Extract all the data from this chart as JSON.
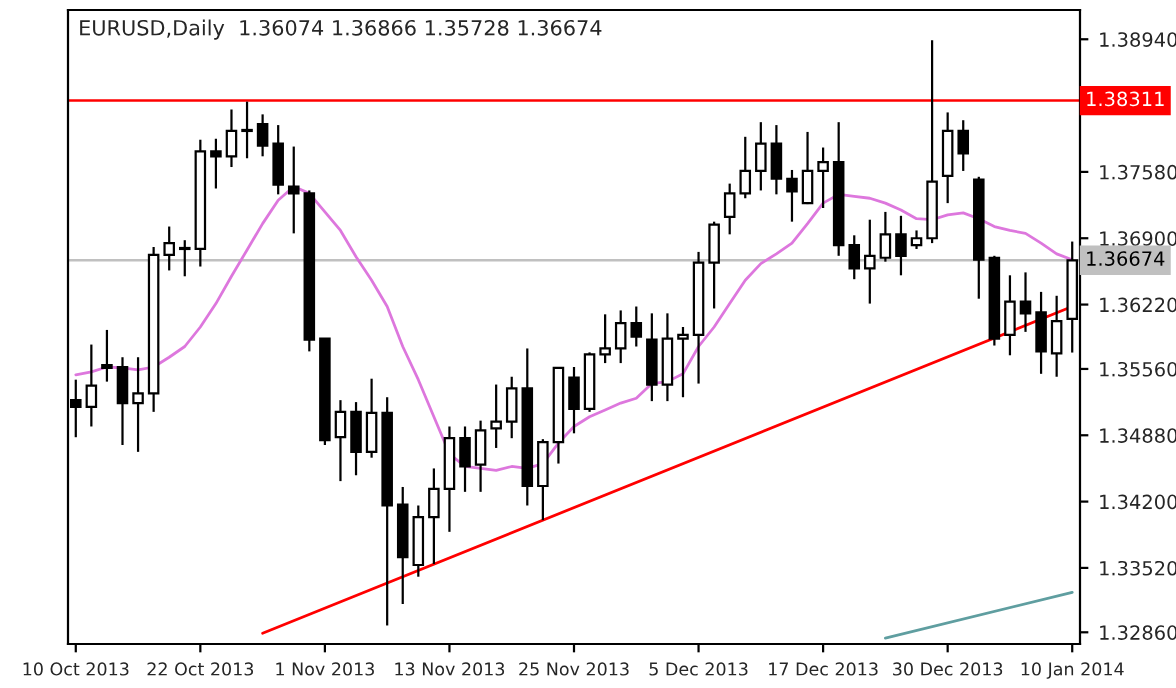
{
  "chart_data": {
    "type": "candlestick",
    "title": "EURUSD,Daily  1.36074 1.36866 1.35728 1.36674",
    "categories": [
      "10 Oct 2013",
      null,
      null,
      null,
      null,
      null,
      null,
      null,
      "22 Oct 2013",
      null,
      null,
      null,
      null,
      null,
      null,
      null,
      "1 Nov 2013",
      null,
      null,
      null,
      null,
      null,
      null,
      null,
      "13 Nov 2013",
      null,
      null,
      null,
      null,
      null,
      null,
      null,
      "25 Nov 2013",
      null,
      null,
      null,
      null,
      null,
      null,
      null,
      "5 Dec 2013",
      null,
      null,
      null,
      null,
      null,
      null,
      null,
      "17 Dec 2013",
      null,
      null,
      null,
      null,
      null,
      null,
      null,
      "30 Dec 2013",
      null,
      null,
      null,
      null,
      null,
      null,
      null,
      "10 Jan 2014"
    ],
    "ohlc": [
      [
        1.3524,
        1.3545,
        1.3486,
        1.3517
      ],
      [
        1.3517,
        1.3581,
        1.3497,
        1.3539
      ],
      [
        1.356,
        1.3596,
        1.3543,
        1.3557
      ],
      [
        1.3558,
        1.3568,
        1.3478,
        1.3521
      ],
      [
        1.3521,
        1.3568,
        1.3471,
        1.3531
      ],
      [
        1.3531,
        1.3681,
        1.3512,
        1.3673
      ],
      [
        1.3673,
        1.3702,
        1.3657,
        1.3685
      ],
      [
        1.368,
        1.3688,
        1.3651,
        1.3679
      ],
      [
        1.3679,
        1.3791,
        1.3661,
        1.3779
      ],
      [
        1.3779,
        1.3792,
        1.3741,
        1.3774
      ],
      [
        1.3774,
        1.3822,
        1.3763,
        1.38
      ],
      [
        1.3801,
        1.383,
        1.3772,
        1.38
      ],
      [
        1.3807,
        1.3817,
        1.3774,
        1.3785
      ],
      [
        1.3787,
        1.3806,
        1.3735,
        1.3745
      ],
      [
        1.3743,
        1.3784,
        1.3695,
        1.3736
      ],
      [
        1.3736,
        1.3739,
        1.3574,
        1.3586
      ],
      [
        1.3587,
        1.3587,
        1.3478,
        1.3483
      ],
      [
        1.3486,
        1.3524,
        1.3441,
        1.3512
      ],
      [
        1.3512,
        1.3522,
        1.3447,
        1.3471
      ],
      [
        1.3471,
        1.3546,
        1.3465,
        1.3511
      ],
      [
        1.3511,
        1.3527,
        1.3293,
        1.3416
      ],
      [
        1.3417,
        1.3435,
        1.3315,
        1.3363
      ],
      [
        1.3355,
        1.3416,
        1.3343,
        1.3404
      ],
      [
        1.3404,
        1.3454,
        1.3356,
        1.3433
      ],
      [
        1.3433,
        1.3497,
        1.3389,
        1.3485
      ],
      [
        1.3485,
        1.3497,
        1.343,
        1.3456
      ],
      [
        1.3458,
        1.3503,
        1.343,
        1.3493
      ],
      [
        1.3495,
        1.354,
        1.3475,
        1.3502
      ],
      [
        1.3502,
        1.3548,
        1.3485,
        1.3536
      ],
      [
        1.3536,
        1.3577,
        1.3416,
        1.3436
      ],
      [
        1.3436,
        1.3484,
        1.3401,
        1.3481
      ],
      [
        1.3481,
        1.3558,
        1.3459,
        1.3557
      ],
      [
        1.3547,
        1.3558,
        1.349,
        1.3515
      ],
      [
        1.3515,
        1.3573,
        1.3512,
        1.3571
      ],
      [
        1.3571,
        1.3612,
        1.3562,
        1.3577
      ],
      [
        1.3577,
        1.3616,
        1.3562,
        1.3603
      ],
      [
        1.3603,
        1.362,
        1.3579,
        1.3589
      ],
      [
        1.3586,
        1.3613,
        1.3523,
        1.354
      ],
      [
        1.354,
        1.3613,
        1.3523,
        1.3587
      ],
      [
        1.3587,
        1.3599,
        1.3527,
        1.3591
      ],
      [
        1.3591,
        1.3676,
        1.3541,
        1.3665
      ],
      [
        1.3665,
        1.3707,
        1.3618,
        1.3704
      ],
      [
        1.3712,
        1.3746,
        1.3694,
        1.3736
      ],
      [
        1.3736,
        1.3794,
        1.3731,
        1.3759
      ],
      [
        1.3759,
        1.3809,
        1.3739,
        1.3787
      ],
      [
        1.3787,
        1.3806,
        1.3735,
        1.3751
      ],
      [
        1.3751,
        1.376,
        1.3707,
        1.3738
      ],
      [
        1.3726,
        1.3799,
        1.3725,
        1.3759
      ],
      [
        1.3759,
        1.3783,
        1.3721,
        1.3768
      ],
      [
        1.3768,
        1.3809,
        1.3672,
        1.3683
      ],
      [
        1.3683,
        1.3693,
        1.3648,
        1.3659
      ],
      [
        1.3659,
        1.3709,
        1.3623,
        1.3672
      ],
      [
        1.367,
        1.3717,
        1.3666,
        1.3694
      ],
      [
        1.3694,
        1.3713,
        1.3652,
        1.3672
      ],
      [
        1.3683,
        1.3698,
        1.3679,
        1.369
      ],
      [
        1.369,
        1.3893,
        1.3685,
        1.3748
      ],
      [
        1.3754,
        1.3819,
        1.3726,
        1.38
      ],
      [
        1.38,
        1.3811,
        1.3759,
        1.3777
      ],
      [
        1.375,
        1.3753,
        1.3628,
        1.3668
      ],
      [
        1.367,
        1.3672,
        1.358,
        1.3587
      ],
      [
        1.3591,
        1.3652,
        1.357,
        1.3625
      ],
      [
        1.3625,
        1.3655,
        1.3594,
        1.3613
      ],
      [
        1.3614,
        1.3635,
        1.3551,
        1.3574
      ],
      [
        1.3572,
        1.3631,
        1.3548,
        1.3605
      ],
      [
        1.36074,
        1.36866,
        1.35728,
        1.36674
      ]
    ],
    "series": [
      {
        "type": "line",
        "color": "#dd77dd",
        "values": [
          1.355,
          1.3553,
          1.3558,
          1.3557,
          1.3555,
          1.3558,
          1.3568,
          1.3579,
          1.3599,
          1.3623,
          1.3651,
          1.3678,
          1.3705,
          1.3729,
          1.3743,
          1.3736,
          1.3717,
          1.3698,
          1.3671,
          1.3647,
          1.362,
          1.3579,
          1.3545,
          1.3507,
          1.3469,
          1.3456,
          1.3454,
          1.3452,
          1.3456,
          1.3454,
          1.3459,
          1.348,
          1.3497,
          1.3507,
          1.3514,
          1.3521,
          1.3526,
          1.3541,
          1.3543,
          1.3551,
          1.3579,
          1.3599,
          1.3623,
          1.3647,
          1.3664,
          1.3674,
          1.3685,
          1.3705,
          1.3726,
          1.3735,
          1.3733,
          1.3731,
          1.3726,
          1.3719,
          1.371,
          1.3709,
          1.3714,
          1.3716,
          1.371,
          1.3702,
          1.3698,
          1.3695,
          1.3685,
          1.3674,
          1.3668
        ]
      },
      {
        "type": "line",
        "color": "#ff0000",
        "values": [
          null,
          null,
          null,
          null,
          null,
          null,
          null,
          null,
          null,
          null,
          null,
          null,
          1.3285,
          null,
          null,
          null,
          null,
          null,
          null,
          null,
          null,
          null,
          null,
          null,
          null,
          null,
          null,
          null,
          null,
          null,
          null,
          null,
          null,
          null,
          null,
          null,
          null,
          null,
          null,
          null,
          null,
          null,
          null,
          null,
          null,
          null,
          null,
          null,
          null,
          null,
          null,
          null,
          null,
          null,
          null,
          null,
          null,
          null,
          null,
          null,
          null,
          null,
          null,
          null,
          1.362
        ]
      },
      {
        "type": "line",
        "color": "#5f9ea0",
        "values": [
          null,
          null,
          null,
          null,
          null,
          null,
          null,
          null,
          null,
          null,
          null,
          null,
          null,
          null,
          null,
          null,
          null,
          null,
          null,
          null,
          null,
          null,
          null,
          null,
          null,
          null,
          null,
          null,
          null,
          null,
          null,
          null,
          null,
          null,
          null,
          null,
          null,
          null,
          null,
          null,
          null,
          null,
          null,
          null,
          null,
          null,
          null,
          null,
          null,
          null,
          null,
          null,
          1.328,
          null,
          null,
          null,
          null,
          null,
          null,
          null,
          null,
          null,
          null,
          null,
          1.3327
        ]
      }
    ],
    "ref_lines": [
      {
        "axis": "y",
        "value": 1.38311,
        "label": "1.38311",
        "color": "#ff0000"
      },
      {
        "axis": "y",
        "value": 1.36674,
        "label": "1.36674",
        "color": "#c0c0c0"
      }
    ],
    "ylim": [
      1.3274,
      1.3924
    ],
    "yticks": [
      {
        "value": 1.3894,
        "label": "1.38940"
      },
      {
        "value": 1.3758,
        "label": "1.37580"
      },
      {
        "value": 1.369,
        "label": "1.36900"
      },
      {
        "value": 1.3622,
        "label": "1.36220"
      },
      {
        "value": 1.3556,
        "label": "1.35560"
      },
      {
        "value": 1.3488,
        "label": "1.34880"
      },
      {
        "value": 1.342,
        "label": "1.34200"
      },
      {
        "value": 1.3352,
        "label": "1.33520"
      },
      {
        "value": 1.3286,
        "label": "1.32860"
      }
    ],
    "grid": false,
    "legend": false
  }
}
